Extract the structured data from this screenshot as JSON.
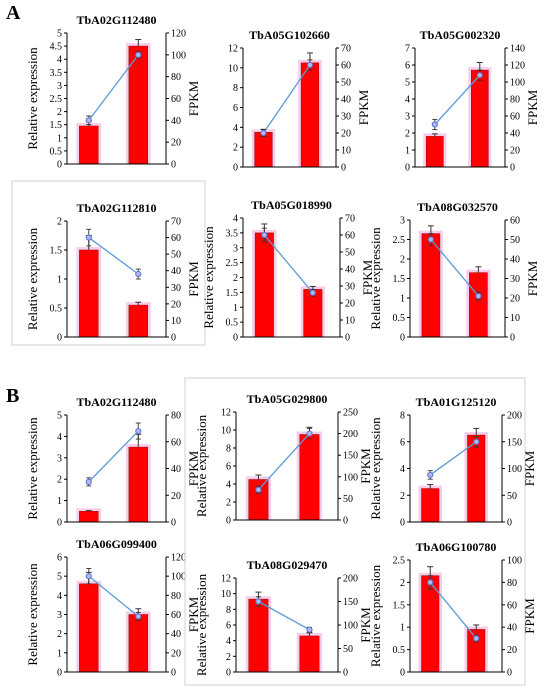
{
  "panels": [
    {
      "letter": "A"
    },
    {
      "letter": "B"
    }
  ],
  "chart_data": [
    {
      "type": "bar",
      "panel": "A",
      "title": "TbA02G112480",
      "categories": [
        "",
        ""
      ],
      "series": [
        {
          "type": "bar",
          "axis": "left",
          "values": [
            1.45,
            4.5
          ],
          "errors": [
            0.2,
            0.25
          ]
        },
        {
          "type": "line",
          "axis": "right",
          "values": [
            40,
            100
          ],
          "errors": [
            4,
            3
          ]
        }
      ],
      "ylabel": "Relative expression",
      "y2label": "FPKM",
      "ylim": [
        0,
        5
      ],
      "yticks": [
        0,
        0.5,
        1,
        1.5,
        2,
        2.5,
        3,
        3.5,
        4,
        4.5,
        5
      ],
      "y2lim": [
        0,
        120
      ],
      "y2ticks": [
        0,
        20,
        40,
        60,
        80,
        100,
        120
      ]
    },
    {
      "type": "bar",
      "panel": "A",
      "title": "TbA05G102660",
      "categories": [
        "",
        ""
      ],
      "series": [
        {
          "type": "bar",
          "axis": "left",
          "values": [
            3.5,
            10.5
          ],
          "errors": [
            0.3,
            1.0
          ]
        },
        {
          "type": "line",
          "axis": "right",
          "values": [
            20,
            60
          ],
          "errors": [
            2,
            3
          ]
        }
      ],
      "ylabel": "",
      "y2label": "FPKM",
      "ylim": [
        0,
        12
      ],
      "yticks": [
        0,
        2,
        4,
        6,
        8,
        10,
        12
      ],
      "y2lim": [
        0,
        70
      ],
      "y2ticks": [
        0,
        10,
        20,
        30,
        40,
        50,
        60,
        70
      ]
    },
    {
      "type": "bar",
      "panel": "A",
      "title": "TbA05G002320",
      "categories": [
        "",
        ""
      ],
      "series": [
        {
          "type": "bar",
          "axis": "left",
          "values": [
            1.8,
            5.7
          ],
          "errors": [
            0.15,
            0.45
          ]
        },
        {
          "type": "line",
          "axis": "right",
          "values": [
            50,
            108
          ],
          "errors": [
            6,
            6
          ]
        }
      ],
      "ylabel": "",
      "y2label": "FPKM",
      "ylim": [
        0,
        7
      ],
      "yticks": [
        0,
        1,
        2,
        3,
        4,
        5,
        6,
        7
      ],
      "y2lim": [
        0,
        140
      ],
      "y2ticks": [
        0,
        20,
        40,
        60,
        80,
        100,
        120,
        140
      ]
    },
    {
      "type": "bar",
      "panel": "A",
      "title": "TbA02G112810",
      "categories": [
        "",
        ""
      ],
      "series": [
        {
          "type": "bar",
          "axis": "left",
          "values": [
            1.5,
            0.55
          ],
          "errors": [
            0.25,
            0.05
          ]
        },
        {
          "type": "line",
          "axis": "right",
          "values": [
            60,
            38
          ],
          "errors": [
            5,
            3
          ]
        }
      ],
      "ylabel": "Relative expression",
      "y2label": "FPKM",
      "ylim": [
        0,
        2
      ],
      "yticks": [
        0,
        0.5,
        1,
        1.5,
        2
      ],
      "y2lim": [
        0,
        70
      ],
      "y2ticks": [
        0,
        10,
        20,
        30,
        40,
        50,
        60,
        70
      ]
    },
    {
      "type": "bar",
      "panel": "A",
      "title": "TbA05G018990",
      "categories": [
        "",
        ""
      ],
      "series": [
        {
          "type": "bar",
          "axis": "left",
          "values": [
            3.5,
            1.6
          ],
          "errors": [
            0.3,
            0.1
          ]
        },
        {
          "type": "line",
          "axis": "right",
          "values": [
            60,
            26
          ],
          "errors": [
            4,
            2
          ]
        }
      ],
      "ylabel": "Relative expression",
      "y2label": "FPKM",
      "ylim": [
        0,
        4
      ],
      "yticks": [
        0,
        0.5,
        1,
        1.5,
        2,
        2.5,
        3,
        3.5,
        4
      ],
      "y2lim": [
        0,
        70
      ],
      "y2ticks": [
        0,
        10,
        20,
        30,
        40,
        50,
        60,
        70
      ]
    },
    {
      "type": "bar",
      "panel": "A",
      "title": "TbA08G032570",
      "categories": [
        "",
        ""
      ],
      "series": [
        {
          "type": "bar",
          "axis": "left",
          "values": [
            2.65,
            1.65
          ],
          "errors": [
            0.2,
            0.15
          ]
        },
        {
          "type": "line",
          "axis": "right",
          "values": [
            50,
            21
          ],
          "errors": [
            3,
            2
          ]
        }
      ],
      "ylabel": "Relative expression",
      "y2label": "FPKM",
      "ylim": [
        0,
        3
      ],
      "yticks": [
        0,
        0.5,
        1,
        1.5,
        2,
        2.5,
        3
      ],
      "y2lim": [
        0,
        60
      ],
      "y2ticks": [
        0,
        10,
        20,
        30,
        40,
        50,
        60
      ]
    },
    {
      "type": "bar",
      "panel": "B",
      "title": "TbA02G112480",
      "categories": [
        "",
        ""
      ],
      "series": [
        {
          "type": "bar",
          "axis": "left",
          "values": [
            0.5,
            3.5
          ],
          "errors": [
            0.03,
            0.6
          ]
        },
        {
          "type": "line",
          "axis": "right",
          "values": [
            30,
            68
          ],
          "errors": [
            3,
            6
          ]
        }
      ],
      "ylabel": "Relative expression",
      "y2label": "FPKM",
      "ylim": [
        0,
        5
      ],
      "yticks": [
        0,
        1,
        2,
        3,
        4,
        5
      ],
      "y2lim": [
        0,
        80
      ],
      "y2ticks": [
        0,
        20,
        40,
        60,
        80
      ]
    },
    {
      "type": "bar",
      "panel": "B",
      "title": "TbA05G029800",
      "categories": [
        "",
        ""
      ],
      "series": [
        {
          "type": "bar",
          "axis": "left",
          "values": [
            4.5,
            9.5
          ],
          "errors": [
            0.5,
            0.8
          ]
        },
        {
          "type": "line",
          "axis": "right",
          "values": [
            70,
            200
          ],
          "errors": [
            8,
            12
          ]
        }
      ],
      "ylabel": "Relative expression",
      "y2label": "FPKM",
      "ylim": [
        0,
        12
      ],
      "yticks": [
        0,
        2,
        4,
        6,
        8,
        10,
        12
      ],
      "y2lim": [
        0,
        250
      ],
      "y2ticks": [
        0,
        50,
        100,
        150,
        200,
        250
      ]
    },
    {
      "type": "bar",
      "panel": "B",
      "title": "TbA01G125120",
      "categories": [
        "",
        ""
      ],
      "series": [
        {
          "type": "bar",
          "axis": "left",
          "values": [
            2.5,
            6.5
          ],
          "errors": [
            0.3,
            0.5
          ]
        },
        {
          "type": "line",
          "axis": "right",
          "values": [
            88,
            150
          ],
          "errors": [
            8,
            10
          ]
        }
      ],
      "ylabel": "Relative expression",
      "y2label": "FPKM",
      "ylim": [
        0,
        8
      ],
      "yticks": [
        0,
        2,
        4,
        6,
        8
      ],
      "y2lim": [
        0,
        200
      ],
      "y2ticks": [
        0,
        50,
        100,
        150,
        200
      ]
    },
    {
      "type": "bar",
      "panel": "B",
      "title": "TbA06G099400",
      "categories": [
        "",
        ""
      ],
      "series": [
        {
          "type": "bar",
          "axis": "left",
          "values": [
            4.6,
            3.0
          ],
          "errors": [
            0.6,
            0.3
          ]
        },
        {
          "type": "line",
          "axis": "right",
          "values": [
            100,
            58
          ],
          "errors": [
            8,
            4
          ]
        }
      ],
      "ylabel": "Relative expression",
      "y2label": "FPKM",
      "ylim": [
        0,
        6
      ],
      "yticks": [
        0,
        1,
        2,
        3,
        4,
        5,
        6
      ],
      "y2lim": [
        0,
        120
      ],
      "y2ticks": [
        0,
        20,
        40,
        60,
        80,
        100,
        120
      ]
    },
    {
      "type": "bar",
      "panel": "B",
      "title": "TbA08G029470",
      "categories": [
        "",
        ""
      ],
      "series": [
        {
          "type": "bar",
          "axis": "left",
          "values": [
            9.3,
            4.6
          ],
          "errors": [
            0.9,
            0.4
          ]
        },
        {
          "type": "line",
          "axis": "right",
          "values": [
            150,
            90
          ],
          "errors": [
            10,
            5
          ]
        }
      ],
      "ylabel": "Relative expression",
      "y2label": "FPKM",
      "ylim": [
        0,
        12
      ],
      "yticks": [
        0,
        2,
        4,
        6,
        8,
        10,
        12
      ],
      "y2lim": [
        0,
        200
      ],
      "y2ticks": [
        0,
        50,
        100,
        150,
        200
      ],
      "boxed": true
    },
    {
      "type": "bar",
      "panel": "B",
      "title": "TbA06G100780",
      "categories": [
        "",
        ""
      ],
      "series": [
        {
          "type": "bar",
          "axis": "left",
          "values": [
            2.15,
            0.95
          ],
          "errors": [
            0.2,
            0.1
          ]
        },
        {
          "type": "line",
          "axis": "right",
          "values": [
            80,
            30
          ],
          "errors": [
            6,
            3
          ]
        }
      ],
      "ylabel": "Relative expression",
      "y2label": "FPKM",
      "ylim": [
        0,
        2.5
      ],
      "yticks": [
        0,
        0.5,
        1,
        1.5,
        2,
        2.5
      ],
      "y2lim": [
        0,
        100
      ],
      "y2ticks": [
        0,
        20,
        40,
        60,
        80,
        100
      ]
    }
  ],
  "colors": {
    "bar_fill": "#ff0000",
    "bar_glow": "#f4c6e8",
    "bar_edge": "#a00000",
    "line": "#5b9bd5",
    "marker_face": "#b0b7f2",
    "marker_edge": "#5b70c8",
    "error": "#333333",
    "axis": "#000000",
    "box": "#d0d0d0"
  }
}
